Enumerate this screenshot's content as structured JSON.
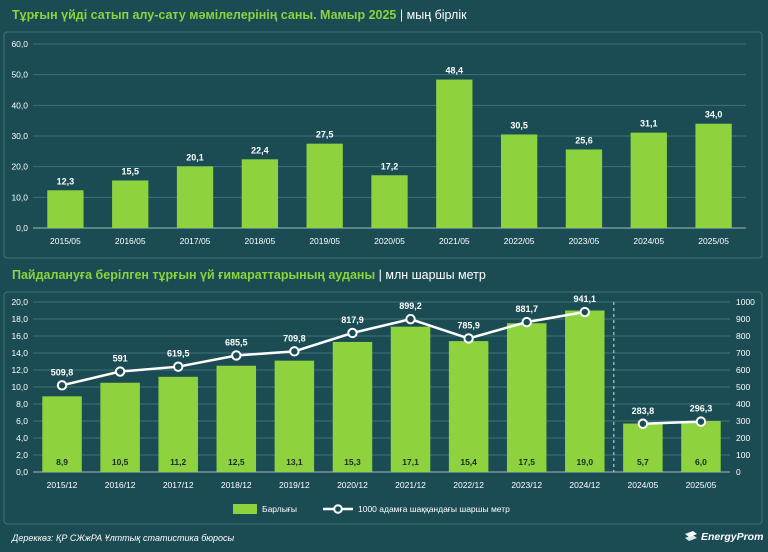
{
  "chart_data": [
    {
      "type": "bar",
      "title": "Тұрғын үйді сатып алу-сату мәмілелерінің саны. Мамыр 2025",
      "unit": "мың бірлік",
      "categories": [
        "2015/05",
        "2016/05",
        "2017/05",
        "2018/05",
        "2019/05",
        "2020/05",
        "2021/05",
        "2022/05",
        "2023/05",
        "2024/05",
        "2025/05"
      ],
      "values": [
        12.3,
        15.5,
        20.1,
        22.4,
        27.5,
        17.2,
        48.4,
        30.5,
        25.6,
        31.1,
        34.0
      ],
      "value_labels": [
        "12,3",
        "15,5",
        "20,1",
        "22,4",
        "27,5",
        "17,2",
        "48,4",
        "30,5",
        "25,6",
        "31,1",
        "34,0"
      ],
      "ylim": [
        0,
        60
      ],
      "yticks": [
        "0,0",
        "10,0",
        "20,0",
        "30,0",
        "40,0",
        "50,0",
        "60,0"
      ],
      "grid": true
    },
    {
      "type": "bar+line",
      "title": "Пайдалануға берілген тұрғын үй ғимараттарының ауданы",
      "unit": "млн шаршы метр",
      "categories": [
        "2015/12",
        "2016/12",
        "2017/12",
        "2018/12",
        "2019/12",
        "2020/12",
        "2021/12",
        "2022/12",
        "2023/12",
        "2024/12",
        "2024/05",
        "2025/05"
      ],
      "series": [
        {
          "name": "Барлығы",
          "type": "bar",
          "axis": "left",
          "values": [
            8.9,
            10.5,
            11.2,
            12.5,
            13.1,
            15.3,
            17.1,
            15.4,
            17.5,
            19.0,
            5.7,
            6.0
          ],
          "value_labels": [
            "8,9",
            "10,5",
            "11,2",
            "12,5",
            "13,1",
            "15,3",
            "17,1",
            "15,4",
            "17,5",
            "19,0",
            "5,7",
            "6,0"
          ]
        },
        {
          "name": "1000 адамға шаққандағы шаршы метр",
          "type": "line",
          "axis": "right",
          "values": [
            509.8,
            591,
            619.5,
            685.5,
            709.8,
            817.9,
            899.2,
            785.9,
            881.7,
            941.1,
            283.8,
            296.3
          ],
          "value_labels": [
            "509,8",
            "591",
            "619,5",
            "685,5",
            "709,8",
            "817,9",
            "899,2",
            "785,9",
            "881,7",
            "941,1",
            "283,8",
            "296,3"
          ]
        }
      ],
      "ylim_left": [
        0,
        20
      ],
      "yticks_left": [
        "0,0",
        "2,0",
        "4,0",
        "6,0",
        "8,0",
        "10,0",
        "12,0",
        "14,0",
        "16,0",
        "18,0",
        "20,0"
      ],
      "ylim_right": [
        0,
        1000
      ],
      "yticks_right": [
        "0",
        "100",
        "200",
        "300",
        "400",
        "500",
        "600",
        "700",
        "800",
        "900",
        "1000"
      ],
      "line_break_after_index": 9,
      "legend_placement": "bottom-center",
      "grid": true
    }
  ],
  "source": "Дереккөз: ҚР СЖжРА Ұлттық статистика бюросы",
  "logo_text": "EnergyProm",
  "colors": {
    "background": "#1b4c54",
    "bar": "#8ed23e",
    "line": "#ffffff",
    "title": "#8ed23e"
  }
}
